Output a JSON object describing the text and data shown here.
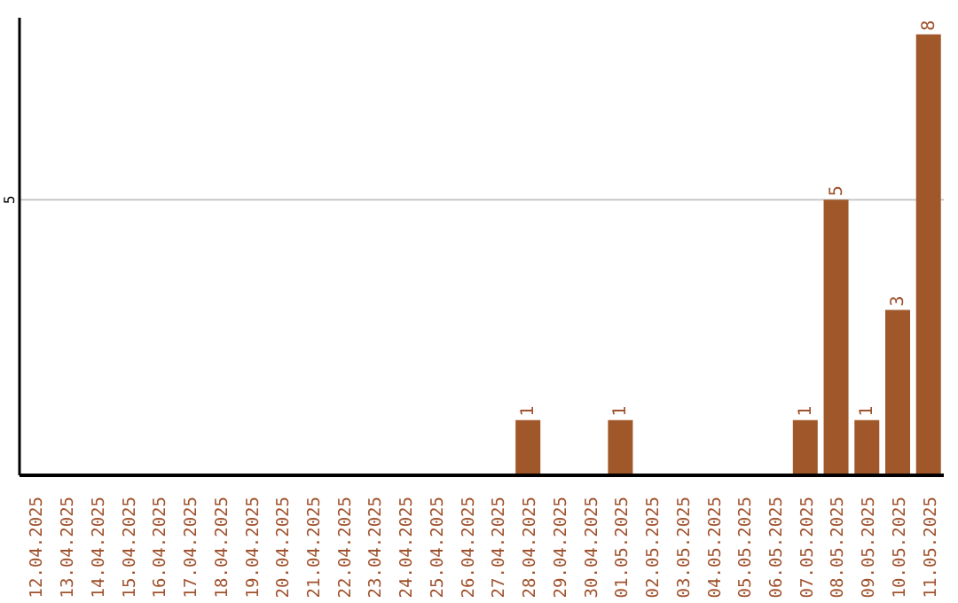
{
  "chart_data": {
    "type": "bar",
    "categories": [
      "12.04.2025",
      "13.04.2025",
      "14.04.2025",
      "15.04.2025",
      "16.04.2025",
      "17.04.2025",
      "18.04.2025",
      "19.04.2025",
      "20.04.2025",
      "21.04.2025",
      "22.04.2025",
      "23.04.2025",
      "24.04.2025",
      "25.04.2025",
      "26.04.2025",
      "27.04.2025",
      "28.04.2025",
      "29.04.2025",
      "30.04.2025",
      "01.05.2025",
      "02.05.2025",
      "03.05.2025",
      "04.05.2025",
      "05.05.2025",
      "06.05.2025",
      "07.05.2025",
      "08.05.2025",
      "09.05.2025",
      "10.05.2025",
      "11.05.2025"
    ],
    "values": [
      null,
      null,
      null,
      null,
      null,
      null,
      null,
      null,
      null,
      null,
      null,
      null,
      null,
      null,
      null,
      null,
      1,
      null,
      null,
      1,
      null,
      null,
      null,
      null,
      null,
      1,
      5,
      1,
      3,
      8
    ],
    "color": "#a0572a",
    "ylim": [
      0,
      8.3
    ],
    "yticks": [
      5
    ],
    "grid": "y",
    "data_labels": true
  }
}
